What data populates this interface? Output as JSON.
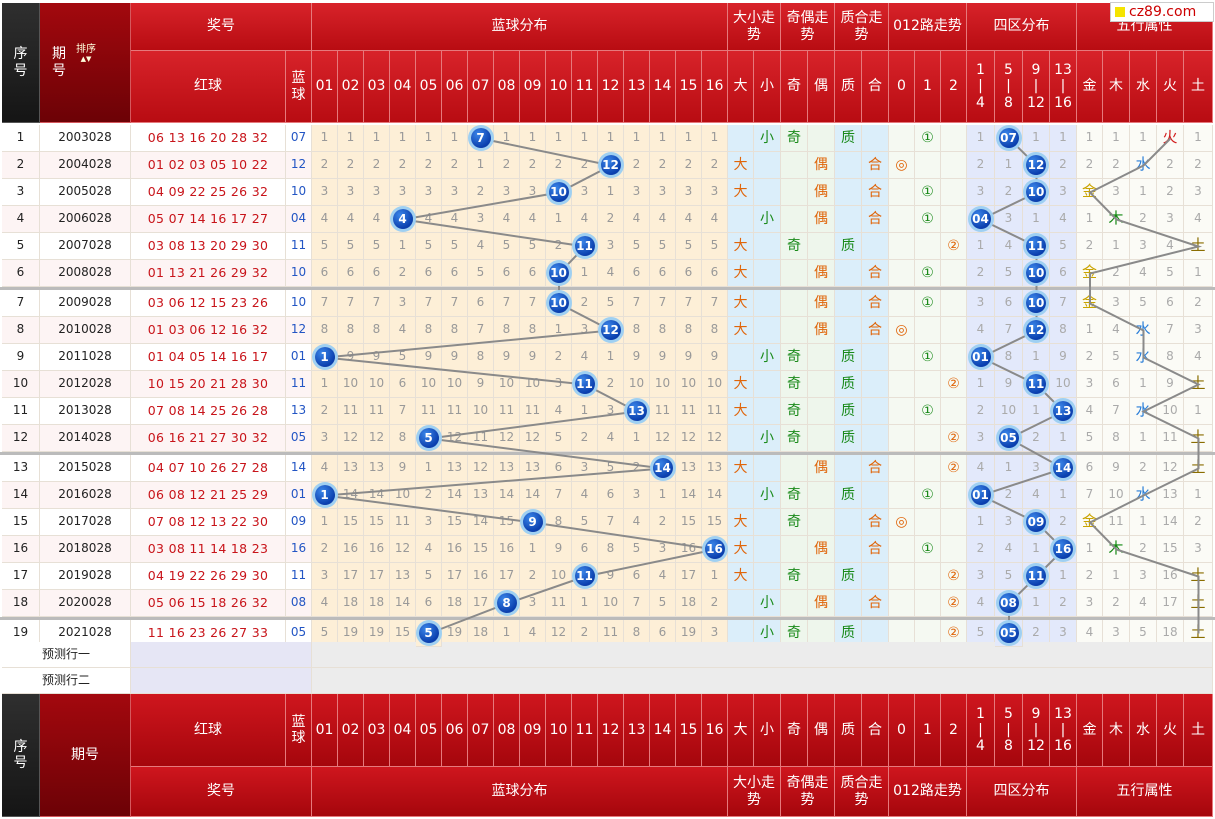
{
  "site_logo": "cz89.com",
  "headers": {
    "seq": "序号",
    "period": "期号",
    "sort": "排序",
    "award": "奖号",
    "red_ball": "红球",
    "blue_ball": "蓝球",
    "blue_dist": "蓝球分布",
    "size_trend": "大小走势",
    "odd_even_trend": "奇偶走势",
    "prime_trend": "质合走势",
    "route_trend": "012路走势",
    "zone_dist": "四区分布",
    "five_elem": "五行属性",
    "size_cols": [
      "大",
      "小"
    ],
    "oe_cols": [
      "奇",
      "偶"
    ],
    "pc_cols": [
      "质",
      "合"
    ],
    "route_cols": [
      "0",
      "1",
      "2"
    ],
    "zone_cols": [
      [
        "1",
        "|",
        "4"
      ],
      [
        "5",
        "|",
        "8"
      ],
      [
        "9",
        "|",
        "12"
      ],
      [
        "13",
        "|",
        "16"
      ]
    ],
    "elem_cols": [
      "金",
      "木",
      "水",
      "火",
      "土"
    ],
    "dist_cols": [
      "01",
      "02",
      "03",
      "04",
      "05",
      "06",
      "07",
      "08",
      "09",
      "10",
      "11",
      "12",
      "13",
      "14",
      "15",
      "16"
    ]
  },
  "predict_rows": [
    "预测行一",
    "预测行二"
  ],
  "rows": [
    {
      "seq": "1",
      "period": "2003028",
      "red": "06 13 16 20 28 32",
      "blue": "07",
      "dist": [
        "1",
        "1",
        "1",
        "1",
        "1",
        "1",
        "7",
        "1",
        "1",
        "1",
        "1",
        "1",
        "1",
        "1",
        "1",
        "1"
      ],
      "ds": [
        "",
        "小"
      ],
      "oe": [
        "奇",
        ""
      ],
      "pc": [
        "质",
        ""
      ],
      "route": [
        "",
        "①",
        ""
      ],
      "zone": [
        "1",
        "07",
        "1",
        "1"
      ],
      "elem": [
        "1",
        "1",
        "1",
        "火",
        "1"
      ]
    },
    {
      "seq": "2",
      "period": "2004028",
      "red": "01 02 03 05 10 22",
      "blue": "12",
      "dist": [
        "2",
        "2",
        "2",
        "2",
        "2",
        "2",
        "1",
        "2",
        "2",
        "2",
        "2",
        "12",
        "2",
        "2",
        "2",
        "2"
      ],
      "ds": [
        "大",
        ""
      ],
      "oe": [
        "",
        "偶"
      ],
      "pc": [
        "",
        "合"
      ],
      "route": [
        "◎",
        "",
        ""
      ],
      "zone": [
        "2",
        "1",
        "12",
        "2"
      ],
      "elem": [
        "2",
        "2",
        "水",
        "2",
        "2"
      ]
    },
    {
      "seq": "3",
      "period": "2005028",
      "red": "04 09 22 25 26 32",
      "blue": "10",
      "dist": [
        "3",
        "3",
        "3",
        "3",
        "3",
        "3",
        "2",
        "3",
        "3",
        "10",
        "3",
        "1",
        "3",
        "3",
        "3",
        "3"
      ],
      "ds": [
        "大",
        ""
      ],
      "oe": [
        "",
        "偶"
      ],
      "pc": [
        "",
        "合"
      ],
      "route": [
        "",
        "①",
        ""
      ],
      "zone": [
        "3",
        "2",
        "10",
        "3"
      ],
      "elem": [
        "金",
        "3",
        "1",
        "2",
        "3"
      ]
    },
    {
      "seq": "4",
      "period": "2006028",
      "red": "05 07 14 16 17 27",
      "blue": "04",
      "dist": [
        "4",
        "4",
        "4",
        "4",
        "4",
        "4",
        "3",
        "4",
        "4",
        "1",
        "4",
        "2",
        "4",
        "4",
        "4",
        "4"
      ],
      "ds": [
        "",
        "小"
      ],
      "oe": [
        "",
        "偶"
      ],
      "pc": [
        "",
        "合"
      ],
      "route": [
        "",
        "①",
        ""
      ],
      "zone": [
        "04",
        "3",
        "1",
        "4"
      ],
      "elem": [
        "1",
        "木",
        "2",
        "3",
        "4"
      ]
    },
    {
      "seq": "5",
      "period": "2007028",
      "red": "03 08 13 20 29 30",
      "blue": "11",
      "dist": [
        "5",
        "5",
        "5",
        "1",
        "5",
        "5",
        "4",
        "5",
        "5",
        "2",
        "11",
        "3",
        "5",
        "5",
        "5",
        "5"
      ],
      "ds": [
        "大",
        ""
      ],
      "oe": [
        "奇",
        ""
      ],
      "pc": [
        "质",
        ""
      ],
      "route": [
        "",
        "",
        "②"
      ],
      "zone": [
        "1",
        "4",
        "11",
        "5"
      ],
      "elem": [
        "2",
        "1",
        "3",
        "4",
        "土"
      ]
    },
    {
      "seq": "6",
      "period": "2008028",
      "red": "01 13 21 26 29 32",
      "blue": "10",
      "dist": [
        "6",
        "6",
        "6",
        "2",
        "6",
        "6",
        "5",
        "6",
        "6",
        "10",
        "1",
        "4",
        "6",
        "6",
        "6",
        "6"
      ],
      "ds": [
        "大",
        ""
      ],
      "oe": [
        "",
        "偶"
      ],
      "pc": [
        "",
        "合"
      ],
      "route": [
        "",
        "①",
        ""
      ],
      "zone": [
        "2",
        "5",
        "10",
        "6"
      ],
      "elem": [
        "金",
        "2",
        "4",
        "5",
        "1"
      ]
    },
    {
      "seq": "7",
      "period": "2009028",
      "red": "03 06 12 15 23 26",
      "blue": "10",
      "dist": [
        "7",
        "7",
        "7",
        "3",
        "7",
        "7",
        "6",
        "7",
        "7",
        "10",
        "2",
        "5",
        "7",
        "7",
        "7",
        "7"
      ],
      "ds": [
        "大",
        ""
      ],
      "oe": [
        "",
        "偶"
      ],
      "pc": [
        "",
        "合"
      ],
      "route": [
        "",
        "①",
        ""
      ],
      "zone": [
        "3",
        "6",
        "10",
        "7"
      ],
      "elem": [
        "金",
        "3",
        "5",
        "6",
        "2"
      ]
    },
    {
      "seq": "8",
      "period": "2010028",
      "red": "01 03 06 12 16 32",
      "blue": "12",
      "dist": [
        "8",
        "8",
        "8",
        "4",
        "8",
        "8",
        "7",
        "8",
        "8",
        "1",
        "3",
        "12",
        "8",
        "8",
        "8",
        "8"
      ],
      "ds": [
        "大",
        ""
      ],
      "oe": [
        "",
        "偶"
      ],
      "pc": [
        "",
        "合"
      ],
      "route": [
        "◎",
        "",
        ""
      ],
      "zone": [
        "4",
        "7",
        "12",
        "8"
      ],
      "elem": [
        "1",
        "4",
        "水",
        "7",
        "3"
      ]
    },
    {
      "seq": "9",
      "period": "2011028",
      "red": "01 04 05 14 16 17",
      "blue": "01",
      "dist": [
        "1",
        "9",
        "9",
        "5",
        "9",
        "9",
        "8",
        "9",
        "9",
        "2",
        "4",
        "1",
        "9",
        "9",
        "9",
        "9"
      ],
      "ds": [
        "",
        "小"
      ],
      "oe": [
        "奇",
        ""
      ],
      "pc": [
        "质",
        ""
      ],
      "route": [
        "",
        "①",
        ""
      ],
      "zone": [
        "01",
        "8",
        "1",
        "9"
      ],
      "elem": [
        "2",
        "5",
        "水",
        "8",
        "4"
      ]
    },
    {
      "seq": "10",
      "period": "2012028",
      "red": "10 15 20 21 28 30",
      "blue": "11",
      "dist": [
        "1",
        "10",
        "10",
        "6",
        "10",
        "10",
        "9",
        "10",
        "10",
        "3",
        "11",
        "2",
        "10",
        "10",
        "10",
        "10"
      ],
      "ds": [
        "大",
        ""
      ],
      "oe": [
        "奇",
        ""
      ],
      "pc": [
        "质",
        ""
      ],
      "route": [
        "",
        "",
        "②"
      ],
      "zone": [
        "1",
        "9",
        "11",
        "10"
      ],
      "elem": [
        "3",
        "6",
        "1",
        "9",
        "土"
      ]
    },
    {
      "seq": "11",
      "period": "2013028",
      "red": "07 08 14 25 26 28",
      "blue": "13",
      "dist": [
        "2",
        "11",
        "11",
        "7",
        "11",
        "11",
        "10",
        "11",
        "11",
        "4",
        "1",
        "3",
        "13",
        "11",
        "11",
        "11"
      ],
      "ds": [
        "大",
        ""
      ],
      "oe": [
        "奇",
        ""
      ],
      "pc": [
        "质",
        ""
      ],
      "route": [
        "",
        "①",
        ""
      ],
      "zone": [
        "2",
        "10",
        "1",
        "13"
      ],
      "elem": [
        "4",
        "7",
        "水",
        "10",
        "1"
      ]
    },
    {
      "seq": "12",
      "period": "2014028",
      "red": "06 16 21 27 30 32",
      "blue": "05",
      "dist": [
        "3",
        "12",
        "12",
        "8",
        "5",
        "12",
        "11",
        "12",
        "12",
        "5",
        "2",
        "4",
        "1",
        "12",
        "12",
        "12"
      ],
      "ds": [
        "",
        "小"
      ],
      "oe": [
        "奇",
        ""
      ],
      "pc": [
        "质",
        ""
      ],
      "route": [
        "",
        "",
        "②"
      ],
      "zone": [
        "3",
        "05",
        "2",
        "1"
      ],
      "elem": [
        "5",
        "8",
        "1",
        "11",
        "土"
      ]
    },
    {
      "seq": "13",
      "period": "2015028",
      "red": "04 07 10 26 27 28",
      "blue": "14",
      "dist": [
        "4",
        "13",
        "13",
        "9",
        "1",
        "13",
        "12",
        "13",
        "13",
        "6",
        "3",
        "5",
        "2",
        "14",
        "13",
        "13"
      ],
      "ds": [
        "大",
        ""
      ],
      "oe": [
        "",
        "偶"
      ],
      "pc": [
        "",
        "合"
      ],
      "route": [
        "",
        "",
        "②"
      ],
      "zone": [
        "4",
        "1",
        "3",
        "14"
      ],
      "elem": [
        "6",
        "9",
        "2",
        "12",
        "土"
      ]
    },
    {
      "seq": "14",
      "period": "2016028",
      "red": "06 08 12 21 25 29",
      "blue": "01",
      "dist": [
        "1",
        "14",
        "14",
        "10",
        "2",
        "14",
        "13",
        "14",
        "14",
        "7",
        "4",
        "6",
        "3",
        "1",
        "14",
        "14"
      ],
      "ds": [
        "",
        "小"
      ],
      "oe": [
        "奇",
        ""
      ],
      "pc": [
        "质",
        ""
      ],
      "route": [
        "",
        "①",
        ""
      ],
      "zone": [
        "01",
        "2",
        "4",
        "1"
      ],
      "elem": [
        "7",
        "10",
        "水",
        "13",
        "1"
      ]
    },
    {
      "seq": "15",
      "period": "2017028",
      "red": "07 08 12 13 22 30",
      "blue": "09",
      "dist": [
        "1",
        "15",
        "15",
        "11",
        "3",
        "15",
        "14",
        "15",
        "9",
        "8",
        "5",
        "7",
        "4",
        "2",
        "15",
        "15"
      ],
      "ds": [
        "大",
        ""
      ],
      "oe": [
        "奇",
        ""
      ],
      "pc": [
        "",
        "合"
      ],
      "route": [
        "◎",
        "",
        ""
      ],
      "zone": [
        "1",
        "3",
        "09",
        "2"
      ],
      "elem": [
        "金",
        "11",
        "1",
        "14",
        "2"
      ]
    },
    {
      "seq": "16",
      "period": "2018028",
      "red": "03 08 11 14 18 23",
      "blue": "16",
      "dist": [
        "2",
        "16",
        "16",
        "12",
        "4",
        "16",
        "15",
        "16",
        "1",
        "9",
        "6",
        "8",
        "5",
        "3",
        "16",
        "16"
      ],
      "ds": [
        "大",
        ""
      ],
      "oe": [
        "",
        "偶"
      ],
      "pc": [
        "",
        "合"
      ],
      "route": [
        "",
        "①",
        ""
      ],
      "zone": [
        "2",
        "4",
        "1",
        "16"
      ],
      "elem": [
        "1",
        "木",
        "2",
        "15",
        "3"
      ]
    },
    {
      "seq": "17",
      "period": "2019028",
      "red": "04 19 22 26 29 30",
      "blue": "11",
      "dist": [
        "3",
        "17",
        "17",
        "13",
        "5",
        "17",
        "16",
        "17",
        "2",
        "10",
        "11",
        "9",
        "6",
        "4",
        "17",
        "1"
      ],
      "ds": [
        "大",
        ""
      ],
      "oe": [
        "奇",
        ""
      ],
      "pc": [
        "质",
        ""
      ],
      "route": [
        "",
        "",
        "②"
      ],
      "zone": [
        "3",
        "5",
        "11",
        "1"
      ],
      "elem": [
        "2",
        "1",
        "3",
        "16",
        "土"
      ]
    },
    {
      "seq": "18",
      "period": "2020028",
      "red": "05 06 15 18 26 32",
      "blue": "08",
      "dist": [
        "4",
        "18",
        "18",
        "14",
        "6",
        "18",
        "17",
        "8",
        "3",
        "11",
        "1",
        "10",
        "7",
        "5",
        "18",
        "2"
      ],
      "ds": [
        "",
        "小"
      ],
      "oe": [
        "",
        "偶"
      ],
      "pc": [
        "",
        "合"
      ],
      "route": [
        "",
        "",
        "②"
      ],
      "zone": [
        "4",
        "08",
        "1",
        "2"
      ],
      "elem": [
        "3",
        "2",
        "4",
        "17",
        "土"
      ]
    },
    {
      "seq": "19",
      "period": "2021028",
      "red": "11 16 23 26 27 33",
      "blue": "05",
      "dist": [
        "5",
        "19",
        "19",
        "15",
        "5",
        "19",
        "18",
        "1",
        "4",
        "12",
        "2",
        "11",
        "8",
        "6",
        "19",
        "3"
      ],
      "ds": [
        "",
        "小"
      ],
      "oe": [
        "奇",
        ""
      ],
      "pc": [
        "质",
        ""
      ],
      "route": [
        "",
        "",
        "②"
      ],
      "zone": [
        "5",
        "05",
        "2",
        "3"
      ],
      "elem": [
        "4",
        "3",
        "5",
        "18",
        "土"
      ]
    }
  ]
}
